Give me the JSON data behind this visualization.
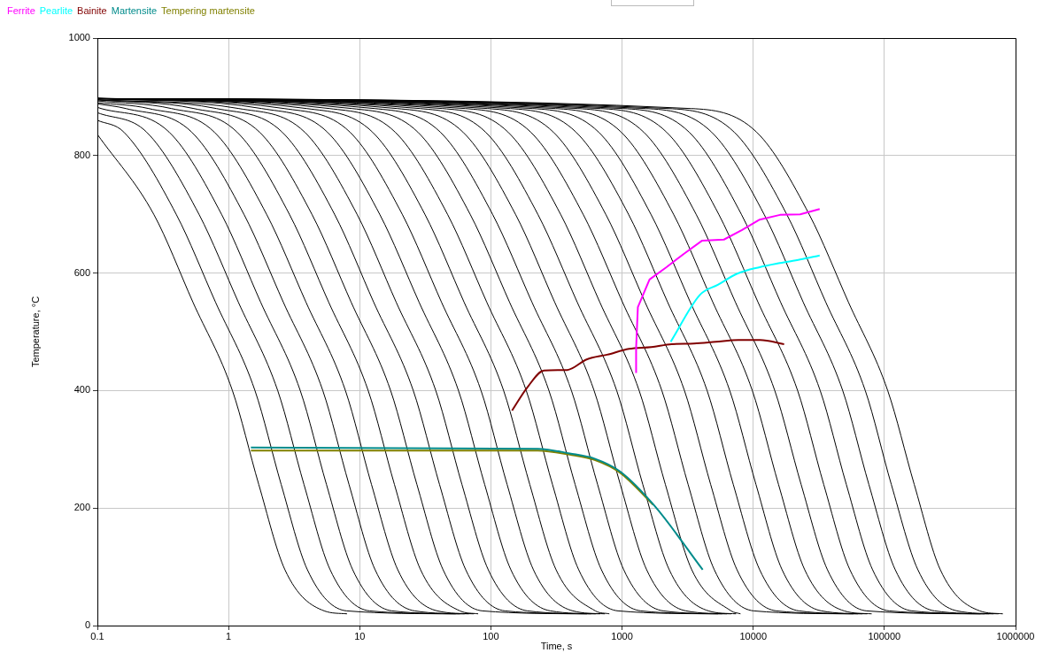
{
  "chart_data": {
    "type": "line",
    "xlabel": "Time, s",
    "ylabel": "Temperature, °C",
    "log": "x",
    "xlim": [
      0.1,
      1000000
    ],
    "xticks": [
      0.1,
      1,
      10,
      100,
      1000,
      10000,
      100000,
      1000000
    ],
    "ylim": [
      0,
      1000
    ],
    "yticks": [
      0,
      200,
      400,
      600,
      800,
      1000
    ],
    "grid": true,
    "legend": "top left",
    "marker": "none",
    "line_style": "solid",
    "series": [
      {
        "color": "#000000",
        "x": [
          0.1,
          0.269,
          0.536,
          1.07,
          1.7,
          2.69,
          5.36,
          8
        ],
        "values": [
          836,
          700,
          550,
          400,
          240,
          95,
          25,
          20
        ]
      },
      {
        "color": "#000000",
        "x": [
          0.1,
          0.159,
          0.399,
          0.797,
          1.59,
          2.52,
          3.99,
          7.97,
          54
        ],
        "values": [
          860,
          840,
          700,
          550,
          400,
          240,
          95,
          25,
          20
        ]
      },
      {
        "color": "#000000",
        "x": [
          0.1,
          0.237,
          0.595,
          1.19,
          2.37,
          3.76,
          5.95,
          11.9,
          58
        ],
        "values": [
          873,
          840,
          700,
          550,
          400,
          240,
          95,
          25,
          20
        ]
      },
      {
        "color": "#000000",
        "x": [
          0.1,
          0.352,
          0.884,
          1.76,
          3.52,
          5.58,
          8.84,
          17.6,
          63
        ],
        "values": [
          882,
          840,
          700,
          550,
          400,
          240,
          95,
          25,
          20
        ]
      },
      {
        "color": "#000000",
        "x": [
          0.1,
          0.165,
          0.523,
          1.31,
          2.62,
          5.23,
          8.29,
          13.1,
          26.2,
          68
        ],
        "values": [
          888,
          880,
          840,
          700,
          550,
          400,
          240,
          95,
          25,
          20
        ]
      },
      {
        "color": "#000000",
        "x": [
          0.1,
          0.246,
          0.778,
          1.95,
          3.9,
          7.78,
          12.3,
          19.5,
          39,
          74
        ],
        "values": [
          890,
          880,
          840,
          700,
          550,
          400,
          240,
          95,
          25,
          20
        ]
      },
      {
        "color": "#000000",
        "x": [
          0.1,
          0.367,
          1.16,
          2.91,
          5.81,
          11.6,
          18.4,
          29.1,
          58.1,
          80
        ],
        "values": [
          893,
          880,
          840,
          700,
          550,
          400,
          240,
          95,
          25,
          20
        ]
      },
      {
        "color": "#000000",
        "x": [
          0.1,
          0.544,
          1.72,
          4.32,
          8.62,
          17.2,
          27.3,
          43.2,
          86.2,
          540
        ],
        "values": [
          895,
          880,
          840,
          700,
          550,
          400,
          240,
          95,
          25,
          20
        ]
      },
      {
        "color": "#000000",
        "x": [
          0.1,
          0.809,
          2.56,
          6.43,
          12.8,
          25.6,
          40.6,
          64.3,
          128,
          580
        ],
        "values": [
          895,
          880,
          840,
          700,
          550,
          400,
          240,
          95,
          25,
          20
        ]
      },
      {
        "color": "#000000",
        "x": [
          0.1,
          1.2,
          3.8,
          9.54,
          19,
          38,
          60.2,
          95.5,
          190,
          630
        ],
        "values": [
          895,
          880,
          840,
          700,
          550,
          400,
          240,
          95,
          25,
          20
        ]
      },
      {
        "color": "#000000",
        "x": [
          0.1,
          1.79,
          5.66,
          14.2,
          28.4,
          56.6,
          89.7,
          142,
          284,
          680
        ],
        "values": [
          897,
          880,
          840,
          700,
          550,
          400,
          240,
          95,
          25,
          20
        ]
      },
      {
        "color": "#000000",
        "x": [
          0.1,
          2.66,
          8.41,
          21.1,
          42.1,
          84.1,
          133,
          211,
          421,
          740
        ],
        "values": [
          897,
          880,
          840,
          700,
          550,
          400,
          240,
          95,
          25,
          20
        ]
      },
      {
        "color": "#000000",
        "x": [
          0.1,
          3.95,
          12.5,
          31.4,
          62.6,
          125,
          198,
          314,
          626,
          800
        ],
        "values": [
          897,
          880,
          840,
          700,
          550,
          400,
          240,
          95,
          25,
          20
        ]
      },
      {
        "color": "#000000",
        "x": [
          0.1,
          5.88,
          18.6,
          46.7,
          93.2,
          186,
          295,
          467,
          932,
          5400
        ],
        "values": [
          897,
          880,
          840,
          700,
          550,
          400,
          240,
          95,
          25,
          20
        ]
      },
      {
        "color": "#000000",
        "x": [
          0.1,
          8.75,
          27.7,
          69.5,
          139,
          277,
          439,
          696,
          1390,
          5800
        ],
        "values": [
          897,
          880,
          840,
          700,
          550,
          400,
          240,
          95,
          25,
          20
        ]
      },
      {
        "color": "#000000",
        "x": [
          0.1,
          13,
          41.1,
          103,
          206,
          411,
          651,
          1030,
          2060,
          6300
        ],
        "values": [
          897,
          880,
          840,
          700,
          550,
          400,
          240,
          95,
          25,
          20
        ]
      },
      {
        "color": "#000000",
        "x": [
          0.1,
          19.3,
          61.2,
          154,
          307,
          612,
          970,
          1540,
          3070,
          6800
        ],
        "values": [
          897,
          880,
          840,
          700,
          550,
          400,
          240,
          95,
          25,
          20
        ]
      },
      {
        "color": "#000000",
        "x": [
          0.1,
          28.8,
          91,
          228,
          456,
          910,
          1440,
          2290,
          4560,
          7400
        ],
        "values": [
          897,
          880,
          840,
          700,
          550,
          400,
          240,
          95,
          25,
          20
        ]
      },
      {
        "color": "#000000",
        "x": [
          0.1,
          42.8,
          135,
          340,
          678,
          1350,
          2140,
          3400,
          6780,
          8000
        ],
        "values": [
          897,
          880,
          840,
          700,
          550,
          400,
          240,
          95,
          25,
          20
        ]
      },
      {
        "color": "#000000",
        "x": [
          0.1,
          63.6,
          201,
          505,
          1010,
          2010,
          3190,
          5050,
          10100,
          58000
        ],
        "values": [
          897,
          880,
          840,
          700,
          550,
          400,
          240,
          95,
          25,
          20
        ]
      },
      {
        "color": "#000000",
        "x": [
          0.1,
          94.5,
          299,
          751,
          1500,
          2990,
          4740,
          7520,
          15000,
          63000
        ],
        "values": [
          897,
          880,
          840,
          700,
          550,
          400,
          240,
          95,
          25,
          20
        ]
      },
      {
        "color": "#000000",
        "x": [
          0.1,
          141,
          445,
          1120,
          2230,
          4450,
          7050,
          11200,
          22300,
          68000
        ],
        "values": [
          897,
          880,
          840,
          700,
          550,
          400,
          240,
          95,
          25,
          20
        ]
      },
      {
        "color": "#000000",
        "x": [
          0.1,
          209,
          662,
          1660,
          3320,
          6620,
          10500,
          16600,
          33100,
          74000
        ],
        "values": [
          897,
          880,
          840,
          700,
          550,
          400,
          240,
          95,
          25,
          20
        ]
      },
      {
        "color": "#000000",
        "x": [
          0.1,
          311,
          984,
          2470,
          4930,
          9840,
          15600,
          24700,
          49300,
          80000
        ],
        "values": [
          897,
          880,
          840,
          700,
          550,
          400,
          240,
          95,
          25,
          20
        ]
      },
      {
        "color": "#000000",
        "x": [
          0.1,
          462,
          1460,
          3670,
          7330,
          14600,
          23200,
          36800,
          73300,
          540000
        ],
        "values": [
          897,
          880,
          840,
          700,
          550,
          400,
          240,
          95,
          25,
          20
        ]
      },
      {
        "color": "#000000",
        "x": [
          0.1,
          687,
          2180,
          5460,
          10900,
          21800,
          34500,
          54600,
          109000,
          580000
        ],
        "values": [
          897,
          880,
          840,
          700,
          550,
          400,
          240,
          95,
          25,
          20
        ]
      },
      {
        "color": "#000000",
        "x": [
          0.1,
          1020,
          3240,
          8120,
          16200,
          32400,
          51300,
          81300,
          162000,
          630000
        ],
        "values": [
          897,
          880,
          840,
          700,
          550,
          400,
          240,
          95,
          25,
          20
        ]
      },
      {
        "color": "#000000",
        "x": [
          0.1,
          1520,
          4810,
          12100,
          24100,
          48100,
          76200,
          121000,
          241000,
          680000
        ],
        "values": [
          897,
          880,
          840,
          700,
          550,
          400,
          240,
          95,
          25,
          20
        ]
      },
      {
        "color": "#000000",
        "x": [
          0.1,
          2260,
          7150,
          18000,
          35800,
          71500,
          113000,
          180000,
          358000,
          740000
        ],
        "values": [
          897,
          880,
          840,
          700,
          550,
          400,
          240,
          95,
          25,
          20
        ]
      },
      {
        "color": "#000000",
        "x": [
          0.1,
          3360,
          10600,
          26700,
          53300,
          106000,
          169000,
          267000,
          533000,
          800000
        ],
        "values": [
          897,
          880,
          840,
          700,
          550,
          400,
          240,
          95,
          25,
          20
        ]
      },
      {
        "name": "Ferrite",
        "color": "#ff00ff",
        "x": [
          1280,
          1280,
          1320,
          1620,
          2180,
          2970,
          4060,
          5980,
          8170,
          11200,
          16000,
          22800,
          32100
        ],
        "values": [
          430,
          473,
          542,
          589,
          610,
          633,
          655,
          657,
          673,
          691,
          699,
          700,
          709
        ]
      },
      {
        "name": "Pearlite",
        "color": "#00ffff",
        "x": [
          2350,
          3930,
          5370,
          7560,
          11200,
          16000,
          22800,
          32100
        ],
        "values": [
          483,
          563,
          580,
          599,
          610,
          617,
          623,
          630
        ]
      },
      {
        "name": "Bainite",
        "color": "#800000",
        "x": [
          145,
          189,
          254,
          381,
          537,
          768,
          1130,
          1670,
          2390,
          3530,
          5200,
          7680,
          11300,
          17200
        ],
        "values": [
          366,
          405,
          434,
          435,
          453,
          461,
          471,
          474,
          479,
          480,
          483,
          486,
          486,
          479
        ]
      },
      {
        "name": "Martensite",
        "color": "#008b8b",
        "x": [
          1.48,
          228,
          399,
          618,
          969,
          1780,
          4120
        ],
        "values": [
          303,
          301,
          293,
          284,
          262,
          203,
          95
        ]
      },
      {
        "name": "Tempering martensite",
        "color": "#808000",
        "x": [
          1.48,
          228,
          399,
          618,
          969,
          1720
        ],
        "values": [
          298,
          298,
          291,
          282,
          260,
          206
        ]
      }
    ]
  }
}
